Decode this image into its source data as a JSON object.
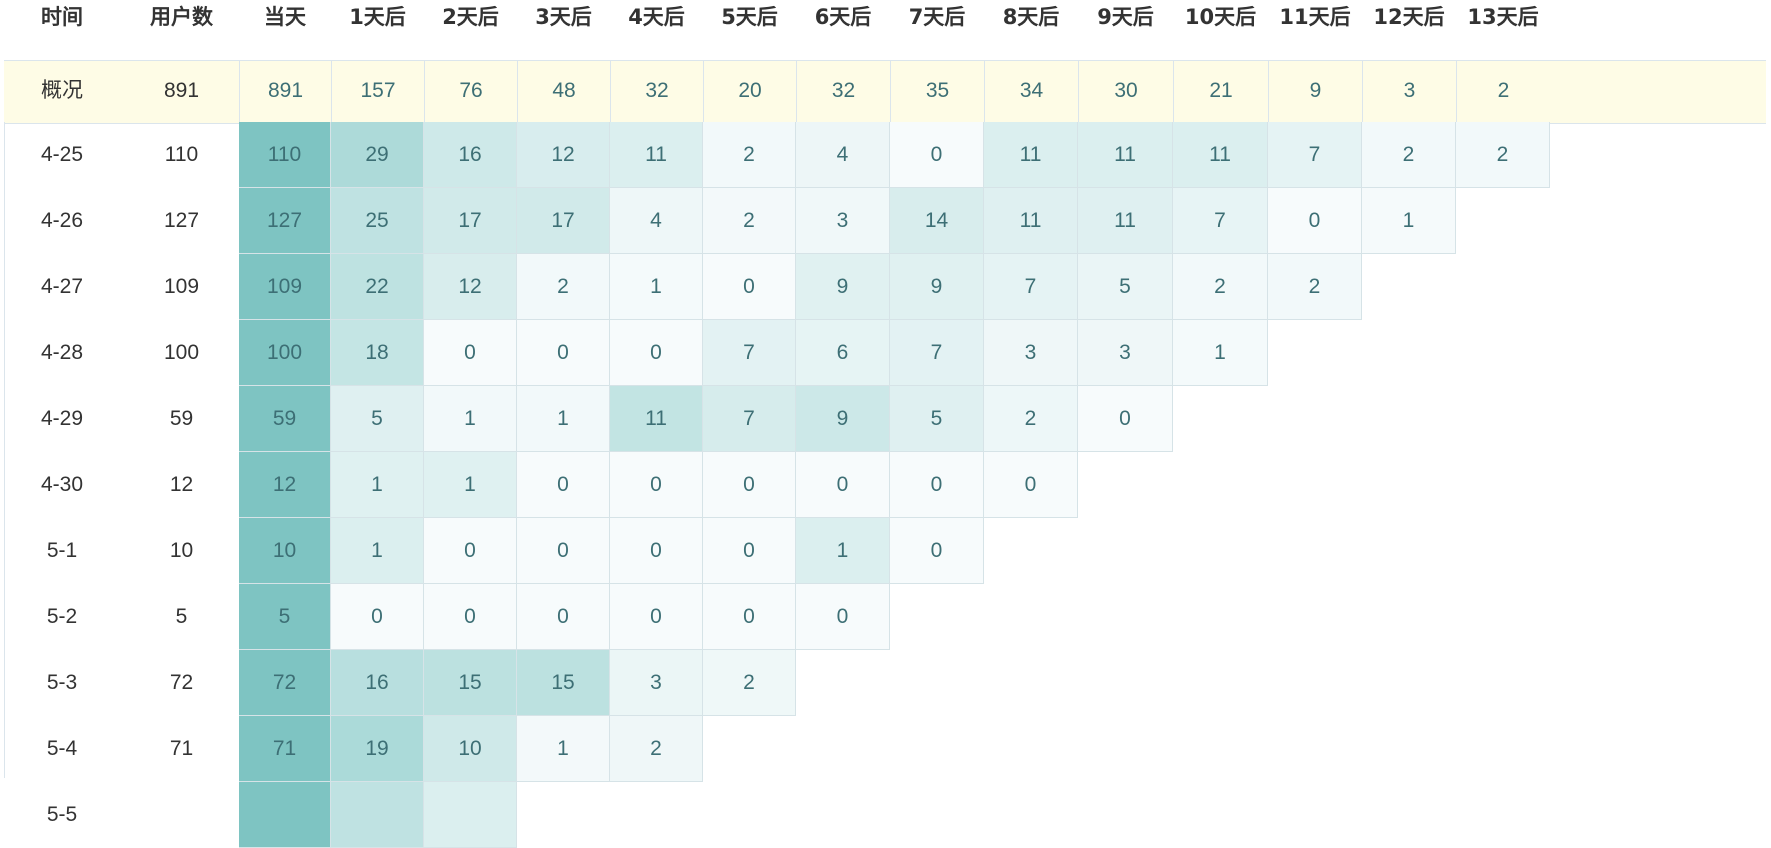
{
  "columns": [
    "时间",
    "用户数",
    "当天",
    "1天后",
    "2天后",
    "3天后",
    "4天后",
    "5天后",
    "6天后",
    "7天后",
    "8天后",
    "9天后",
    "10天后",
    "11天后",
    "12天后",
    "13天后"
  ],
  "summary": {
    "label": "概况",
    "users": "891",
    "values": [
      "891",
      "157",
      "76",
      "48",
      "32",
      "20",
      "32",
      "35",
      "34",
      "30",
      "21",
      "9",
      "3",
      "2"
    ]
  },
  "rows": [
    {
      "date": "4-25",
      "users": "110",
      "values": [
        "110",
        "29",
        "16",
        "12",
        "11",
        "2",
        "4",
        "0",
        "11",
        "11",
        "11",
        "7",
        "2",
        "2"
      ]
    },
    {
      "date": "4-26",
      "users": "127",
      "values": [
        "127",
        "25",
        "17",
        "17",
        "4",
        "2",
        "3",
        "14",
        "11",
        "11",
        "7",
        "0",
        "1"
      ]
    },
    {
      "date": "4-27",
      "users": "109",
      "values": [
        "109",
        "22",
        "12",
        "2",
        "1",
        "0",
        "9",
        "9",
        "7",
        "5",
        "2",
        "2"
      ]
    },
    {
      "date": "4-28",
      "users": "100",
      "values": [
        "100",
        "18",
        "0",
        "0",
        "0",
        "7",
        "6",
        "7",
        "3",
        "3",
        "1"
      ]
    },
    {
      "date": "4-29",
      "users": "59",
      "values": [
        "59",
        "5",
        "1",
        "1",
        "11",
        "7",
        "9",
        "5",
        "2",
        "0"
      ]
    },
    {
      "date": "4-30",
      "users": "12",
      "values": [
        "12",
        "1",
        "1",
        "0",
        "0",
        "0",
        "0",
        "0",
        "0"
      ]
    },
    {
      "date": "5-1",
      "users": "10",
      "values": [
        "10",
        "1",
        "0",
        "0",
        "0",
        "0",
        "1",
        "0"
      ]
    },
    {
      "date": "5-2",
      "users": "5",
      "values": [
        "5",
        "0",
        "0",
        "0",
        "0",
        "0",
        "0"
      ]
    },
    {
      "date": "5-3",
      "users": "72",
      "values": [
        "72",
        "16",
        "15",
        "15",
        "3",
        "2"
      ]
    },
    {
      "date": "5-4",
      "users": "71",
      "values": [
        "71",
        "19",
        "10",
        "1",
        "2"
      ]
    },
    {
      "date": "5-5",
      "users": "",
      "values": []
    }
  ],
  "colors": {
    "day0": "#7ec4c2",
    "heat_high": "#a8d8d7",
    "heat_low": "#f7fbfc",
    "summary_bg": "#fefce6",
    "text_value": "#3d6f75",
    "text_label": "#333333"
  }
}
